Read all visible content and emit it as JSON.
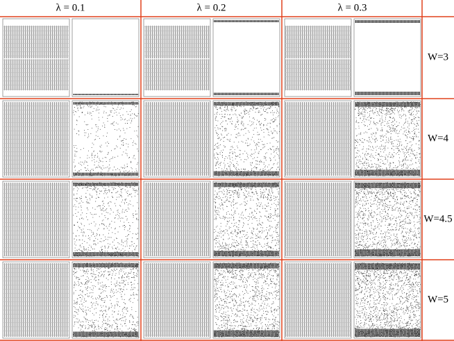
{
  "columns": [
    "λ = 0.1",
    "λ = 0.2",
    "λ = 0.3"
  ],
  "rows": [
    "W=3",
    "W=4",
    "W=4.5",
    "W=5"
  ]
}
